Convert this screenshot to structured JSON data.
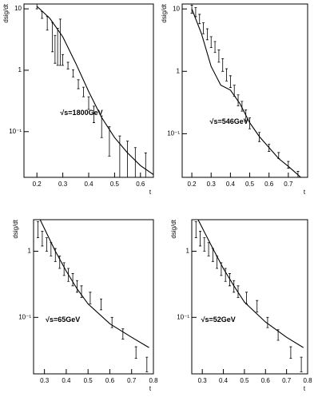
{
  "chart_data": [
    {
      "type": "line",
      "ylabel": "dsig/dt",
      "xlabel": "t",
      "annotation": "√s=1800GeV",
      "log_y": true,
      "xlim": [
        0.15,
        0.65
      ],
      "xticks": [
        0.2,
        0.3,
        0.4,
        0.5,
        0.6
      ],
      "ylim": [
        0.018,
        12
      ],
      "yticks": [
        {
          "value": 0.1,
          "label": "10⁻¹"
        },
        1,
        10
      ],
      "curve": {
        "color": "#000000",
        "x": [
          0.2,
          0.25,
          0.3,
          0.35,
          0.4,
          0.45,
          0.5,
          0.55,
          0.6,
          0.65
        ],
        "values": [
          11,
          7,
          3.5,
          1.3,
          0.45,
          0.17,
          0.08,
          0.045,
          0.028,
          0.02
        ]
      },
      "points": {
        "color": "#000000",
        "x": [
          0.2,
          0.22,
          0.24,
          0.26,
          0.27,
          0.28,
          0.29,
          0.3,
          0.32,
          0.34,
          0.36,
          0.38,
          0.4,
          0.42,
          0.45,
          0.48,
          0.52,
          0.55,
          0.58,
          0.62
        ],
        "values": [
          11,
          8,
          6,
          4,
          2.5,
          3,
          4,
          1.5,
          1.2,
          0.9,
          0.6,
          0.45,
          0.3,
          0.2,
          0.13,
          0.08,
          0.05,
          0.04,
          0.03,
          0.025
        ],
        "errors": [
          1,
          1,
          1.5,
          2,
          1.2,
          1.8,
          2.8,
          0.3,
          0.15,
          0.12,
          0.1,
          0.08,
          0.07,
          0.06,
          0.05,
          0.04,
          0.035,
          0.03,
          0.025,
          0.02
        ]
      }
    },
    {
      "type": "line",
      "ylabel": "dsig/dt",
      "xlabel": "t",
      "annotation": "√s=546GeV",
      "log_y": true,
      "xlim": [
        0.15,
        0.8
      ],
      "xticks": [
        0.2,
        0.3,
        0.4,
        0.5,
        0.6,
        0.7
      ],
      "ylim": [
        0.02,
        12
      ],
      "yticks": [
        {
          "value": 0.1,
          "label": "10⁻¹"
        },
        1,
        10
      ],
      "curve": {
        "color": "#000000",
        "x": [
          0.2,
          0.25,
          0.3,
          0.35,
          0.4,
          0.45,
          0.5,
          0.55,
          0.6,
          0.65,
          0.7,
          0.75,
          0.78
        ],
        "values": [
          10,
          4,
          1.2,
          0.6,
          0.5,
          0.3,
          0.15,
          0.09,
          0.06,
          0.04,
          0.03,
          0.022,
          0.018
        ]
      },
      "points": {
        "color": "#000000",
        "x": [
          0.2,
          0.22,
          0.24,
          0.26,
          0.28,
          0.3,
          0.32,
          0.34,
          0.36,
          0.38,
          0.4,
          0.42,
          0.44,
          0.46,
          0.48,
          0.5,
          0.55,
          0.6,
          0.65,
          0.7,
          0.75
        ],
        "values": [
          10,
          9,
          7,
          5,
          4,
          3,
          2.5,
          1.8,
          1.3,
          0.9,
          0.7,
          0.5,
          0.35,
          0.28,
          0.2,
          0.15,
          0.09,
          0.06,
          0.045,
          0.032,
          0.022
        ],
        "errors": [
          1.5,
          1.5,
          1.2,
          1,
          0.8,
          0.6,
          0.5,
          0.4,
          0.3,
          0.2,
          0.15,
          0.1,
          0.07,
          0.05,
          0.04,
          0.03,
          0.015,
          0.008,
          0.005,
          0.004,
          0.003
        ]
      }
    },
    {
      "type": "line",
      "ylabel": "dsig/dt",
      "xlabel": "t",
      "annotation": "√s=65GeV",
      "log_y": true,
      "xlim": [
        0.25,
        0.8
      ],
      "xticks": [
        0.3,
        0.4,
        0.5,
        0.6,
        0.7,
        0.8
      ],
      "ylim": [
        0.014,
        3
      ],
      "yticks": [
        {
          "value": 0.1,
          "label": "10⁻¹"
        },
        1
      ],
      "curve": {
        "color": "#000000",
        "x": [
          0.28,
          0.35,
          0.4,
          0.45,
          0.5,
          0.6,
          0.7,
          0.78
        ],
        "values": [
          3,
          1,
          0.5,
          0.27,
          0.16,
          0.08,
          0.05,
          0.035
        ]
      },
      "points": {
        "color": "#000000",
        "x": [
          0.27,
          0.29,
          0.31,
          0.33,
          0.35,
          0.37,
          0.39,
          0.41,
          0.43,
          0.45,
          0.47,
          0.51,
          0.56,
          0.61,
          0.66,
          0.72,
          0.77
        ],
        "values": [
          2.2,
          1.6,
          1.3,
          1.1,
          0.9,
          0.7,
          0.55,
          0.45,
          0.38,
          0.3,
          0.25,
          0.2,
          0.16,
          0.085,
          0.057,
          0.03,
          0.02
        ],
        "errors": [
          0.6,
          0.4,
          0.3,
          0.25,
          0.2,
          0.15,
          0.12,
          0.1,
          0.08,
          0.06,
          0.05,
          0.04,
          0.03,
          0.015,
          0.01,
          0.006,
          0.005
        ]
      }
    },
    {
      "type": "line",
      "ylabel": "dsig/dt",
      "xlabel": "t",
      "annotation": "√s=52GeV",
      "log_y": true,
      "xlim": [
        0.25,
        0.8
      ],
      "xticks": [
        0.3,
        0.4,
        0.5,
        0.6,
        0.7,
        0.8
      ],
      "ylim": [
        0.014,
        3
      ],
      "yticks": [
        {
          "value": 0.1,
          "label": "10⁻¹"
        },
        1
      ],
      "curve": {
        "color": "#000000",
        "x": [
          0.28,
          0.35,
          0.4,
          0.45,
          0.5,
          0.6,
          0.7,
          0.78
        ],
        "values": [
          3,
          1.1,
          0.55,
          0.3,
          0.17,
          0.085,
          0.05,
          0.035
        ]
      },
      "points": {
        "color": "#000000",
        "x": [
          0.27,
          0.29,
          0.31,
          0.33,
          0.35,
          0.37,
          0.39,
          0.41,
          0.43,
          0.45,
          0.47,
          0.51,
          0.56,
          0.61,
          0.66,
          0.72,
          0.77
        ],
        "values": [
          2.2,
          1.6,
          1.3,
          1.1,
          0.9,
          0.7,
          0.55,
          0.45,
          0.38,
          0.3,
          0.25,
          0.2,
          0.15,
          0.085,
          0.055,
          0.03,
          0.02
        ],
        "errors": [
          0.6,
          0.4,
          0.3,
          0.25,
          0.2,
          0.15,
          0.12,
          0.1,
          0.08,
          0.06,
          0.05,
          0.04,
          0.03,
          0.015,
          0.01,
          0.006,
          0.005
        ]
      }
    }
  ]
}
